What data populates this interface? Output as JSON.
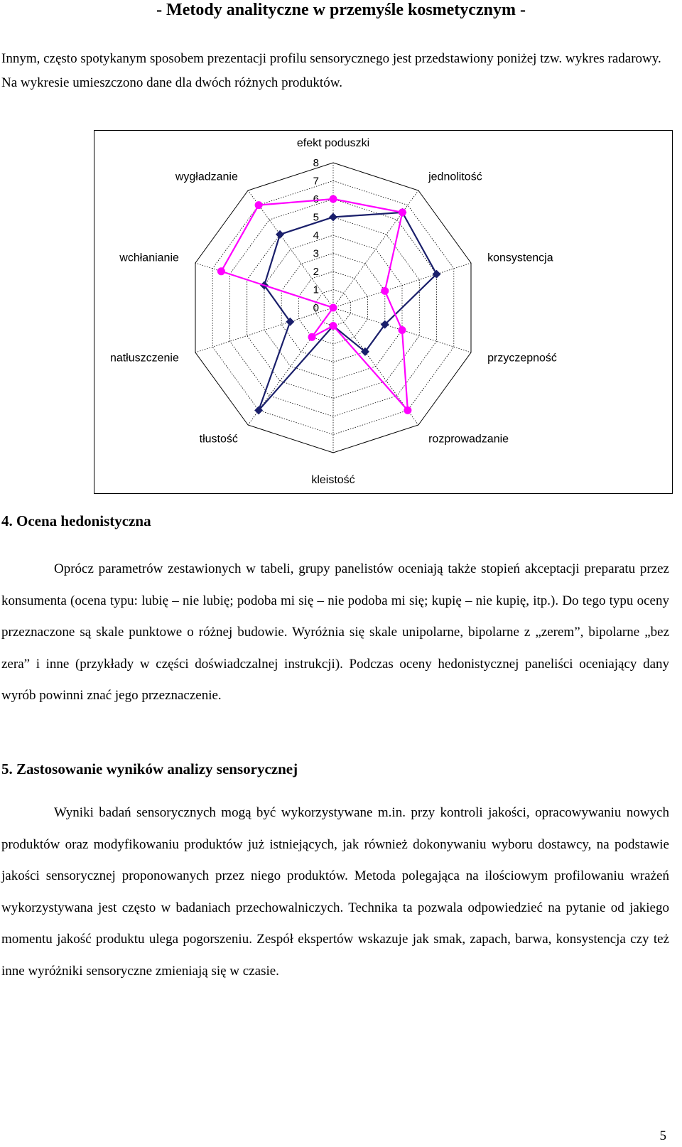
{
  "header": {
    "title": "- Metody analityczne w przemyśle kosmetycznym -"
  },
  "intro": "Innym, często spotykanym sposobem prezentacji profilu sensorycznego jest przedstawiony poniżej tzw. wykres radarowy. Na wykresie umieszczono dane dla dwóch różnych produktów.",
  "chart_data": {
    "type": "radar",
    "categories": [
      "efekt poduszki",
      "jednolitość",
      "konsystencja",
      "przyczepność",
      "rozprowadzanie",
      "kleistość",
      "tłustość",
      "natłuszczenie",
      "wchłanianie",
      "wygładzanie"
    ],
    "ticks": [
      "0",
      "1",
      "2",
      "3",
      "4",
      "5",
      "6",
      "7",
      "8"
    ],
    "rlim": [
      0,
      8
    ],
    "grid": true,
    "legend": "none",
    "series": [
      {
        "color": "#1a1f6b",
        "marker": "diamond",
        "values": [
          5,
          6.5,
          6,
          3,
          3,
          1,
          7,
          2.5,
          4,
          5
        ]
      },
      {
        "color": "#ff00ff",
        "marker": "circle",
        "values": [
          6,
          6.5,
          3,
          4,
          7,
          1,
          2,
          0,
          6.5,
          7
        ]
      }
    ]
  },
  "section4": {
    "heading": "4. Ocena hedonistyczna",
    "text": "Oprócz parametrów zestawionych w tabeli, grupy panelistów oceniają także stopień akceptacji preparatu przez konsumenta (ocena typu: lubię – nie lubię; podoba mi się – nie podoba mi się; kupię – nie kupię, itp.). Do tego typu oceny przeznaczone są skale punktowe o różnej budowie. Wyróżnia się skale unipolarne, bipolarne z „zerem”, bipolarne „bez zera” i inne (przykłady w części doświadczalnej instrukcji). Podczas oceny hedonistycznej paneliści oceniający dany wyrób powinni znać jego przeznaczenie."
  },
  "section5": {
    "heading": "5. Zastosowanie wyników analizy sensorycznej",
    "text": "Wyniki badań sensorycznych mogą być wykorzystywane m.in. przy kontroli jakości, opracowywaniu nowych produktów oraz modyfikowaniu produktów już istniejących, jak również dokonywaniu wyboru dostawcy, na podstawie jakości sensorycznej proponowanych przez niego produktów. Metoda polegająca na ilościowym profilowaniu wrażeń wykorzystywana jest często w badaniach przechowalniczych. Technika ta pozwala odpowiedzieć na pytanie od jakiego momentu jakość produktu ulega pogorszeniu. Zespół ekspertów wskazuje jak smak, zapach, barwa, konsystencja czy też inne wyróżniki sensoryczne zmieniają się w czasie."
  },
  "footer": {
    "page_number": "5"
  }
}
